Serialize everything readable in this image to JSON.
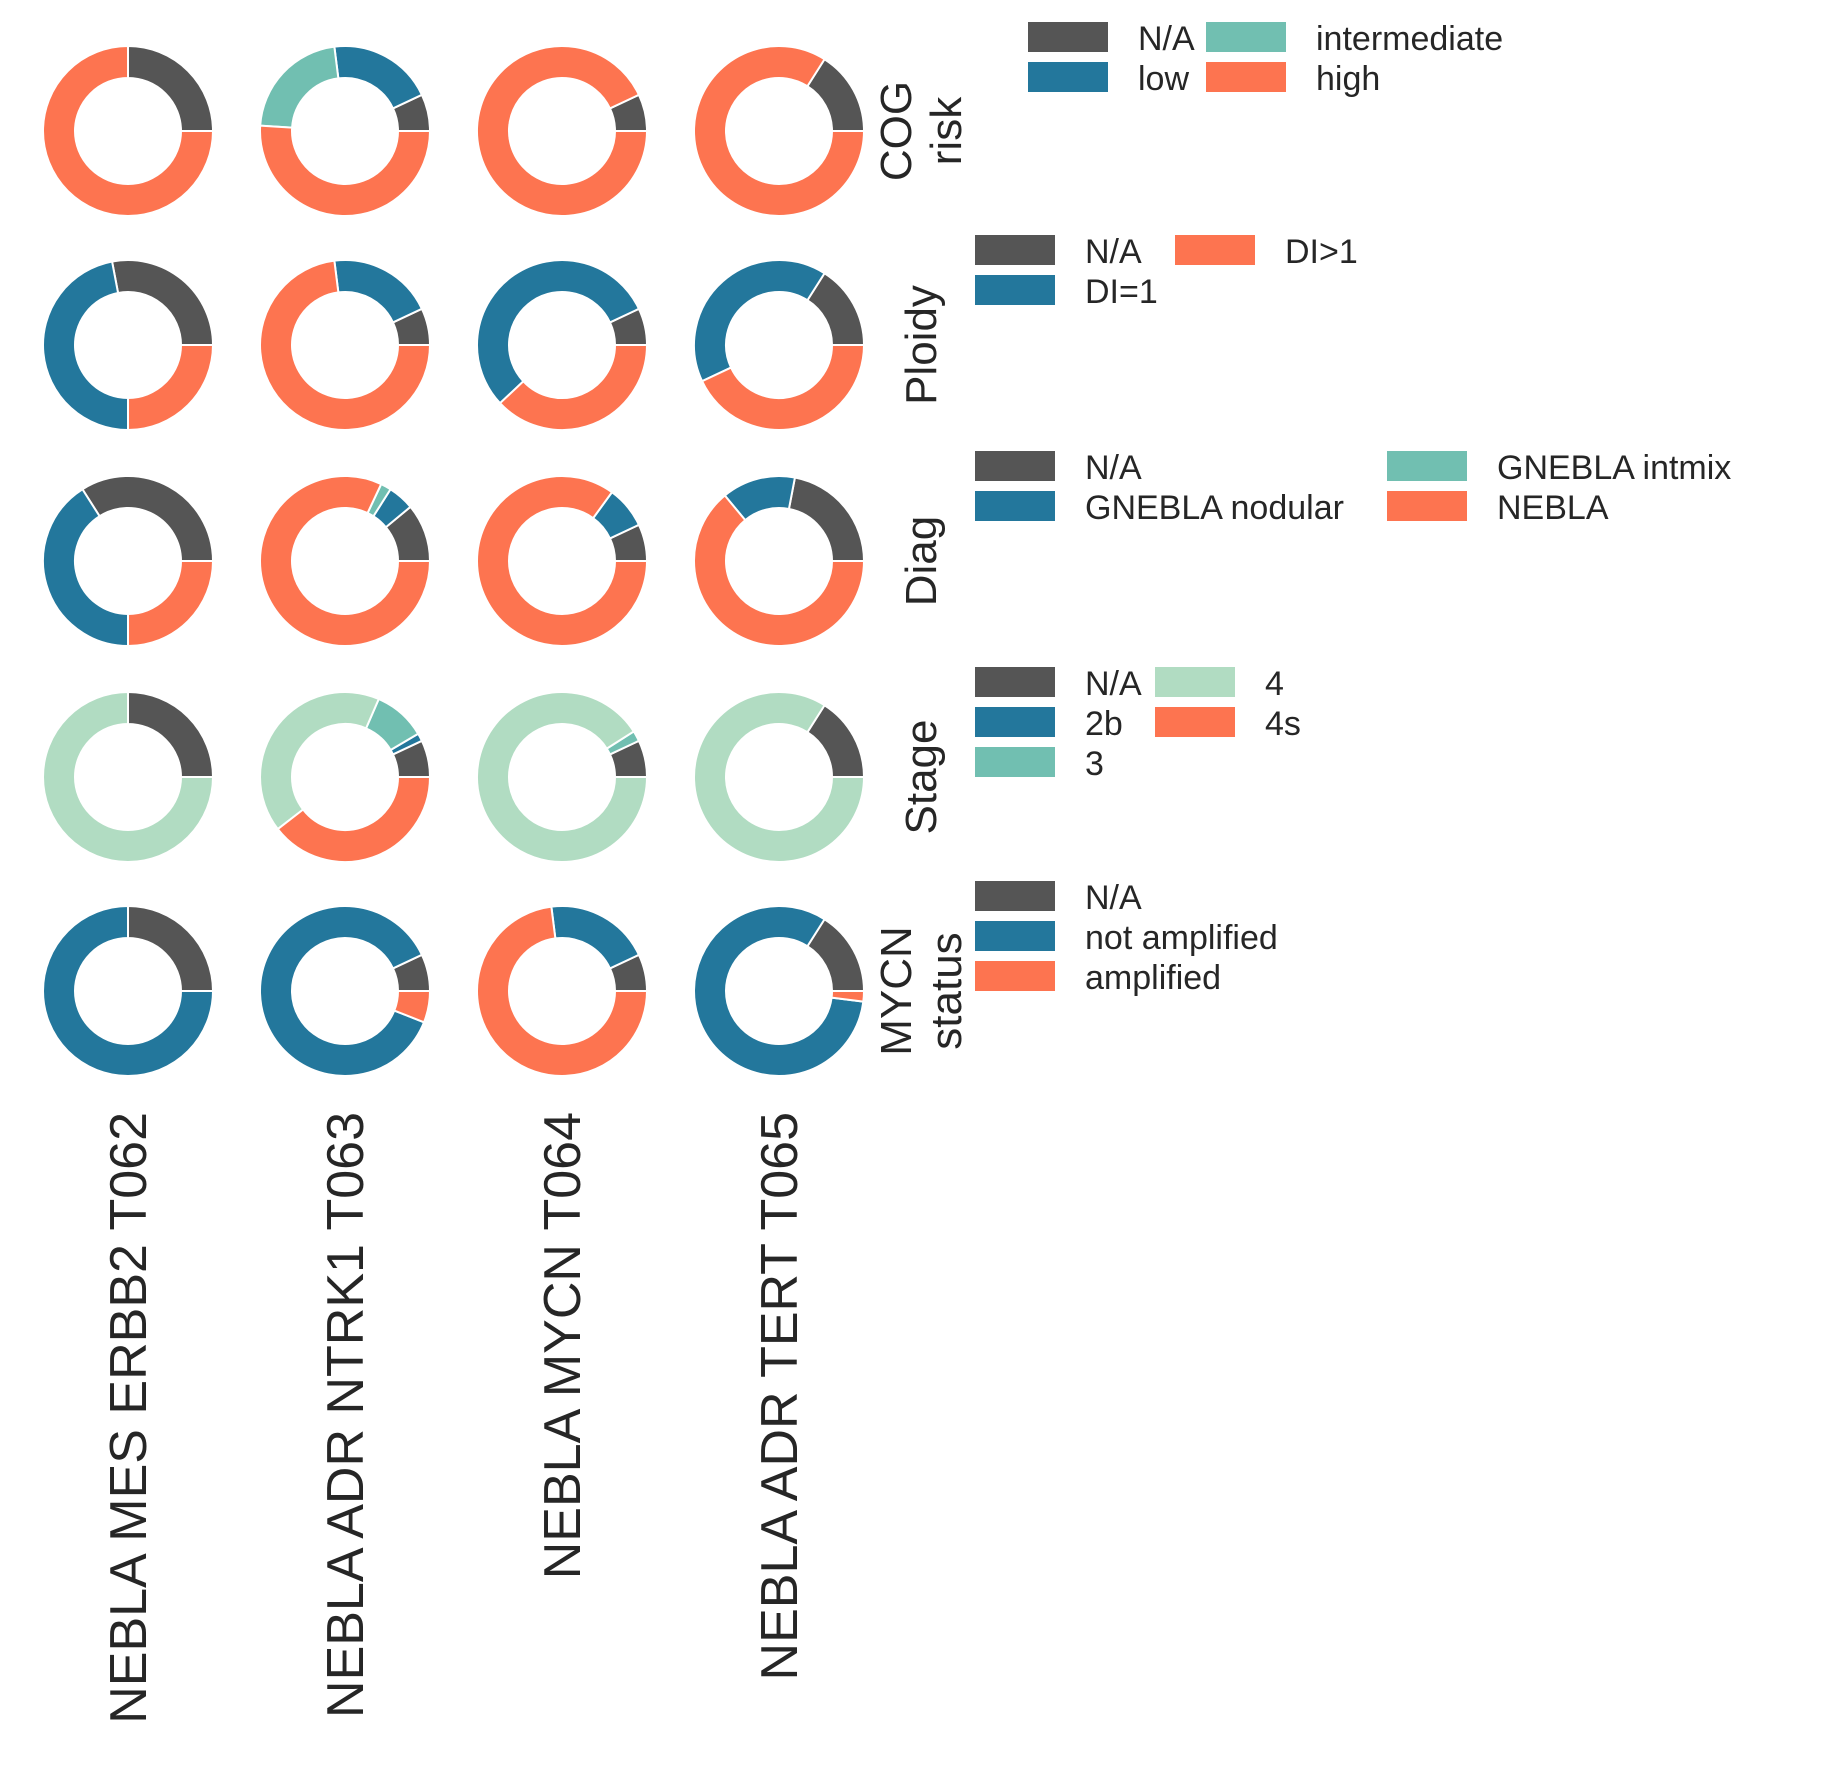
{
  "chart_data": {
    "type": "pie",
    "variant": "donut-grid",
    "columns": [
      "NEBLA MES ERBB2 T062",
      "NEBLA ADR NTRK1 T063",
      "NEBLA MYCN T064",
      "NEBLA ADR TERT T065"
    ],
    "rows": [
      {
        "label_lines": [
          "COG",
          "risk"
        ],
        "legend_cols": 2,
        "categories": [
          "N/A",
          "low",
          "intermediate",
          "high"
        ],
        "colors": [
          "#555555",
          "#23779c",
          "#71bfb1",
          "#fd7450"
        ],
        "values": [
          [
            25,
            0,
            0,
            75
          ],
          [
            7,
            20,
            22,
            51
          ],
          [
            7,
            0,
            0,
            93
          ],
          [
            16,
            0,
            0,
            84
          ]
        ]
      },
      {
        "label_lines": [
          "Ploidy"
        ],
        "legend_cols": 2,
        "categories": [
          "N/A",
          "DI=1",
          "DI>1"
        ],
        "colors": [
          "#555555",
          "#23779c",
          "#fd7450"
        ],
        "values": [
          [
            28,
            47,
            25
          ],
          [
            7,
            20,
            73
          ],
          [
            7,
            55,
            38
          ],
          [
            16,
            41,
            43
          ]
        ]
      },
      {
        "label_lines": [
          "Diag"
        ],
        "legend_cols": 2,
        "categories": [
          "N/A",
          "GNEBLA nodular",
          "GNEBLA intmix",
          "NEBLA"
        ],
        "colors": [
          "#555555",
          "#23779c",
          "#71bfb1",
          "#fd7450"
        ],
        "values": [
          [
            34,
            41,
            0,
            25
          ],
          [
            11,
            5,
            2,
            82
          ],
          [
            7,
            8,
            0,
            85
          ],
          [
            22,
            14,
            0,
            64
          ]
        ]
      },
      {
        "label_lines": [
          "Stage"
        ],
        "legend_cols": 2,
        "categories": [
          "N/A",
          "2b",
          "3",
          "4",
          "4s"
        ],
        "colors": [
          "#555555",
          "#23779c",
          "#71bfb1",
          "#b1dcc2",
          "#fd7450"
        ],
        "values": [
          [
            25,
            0,
            0,
            75,
            0
          ],
          [
            7,
            1.5,
            10,
            42,
            39.5
          ],
          [
            7,
            0,
            2,
            91,
            0
          ],
          [
            16,
            0,
            0,
            84,
            0
          ]
        ]
      },
      {
        "label_lines": [
          "MYCN",
          "status"
        ],
        "legend_cols": 1,
        "categories": [
          "N/A",
          "not amplified",
          "amplified"
        ],
        "colors": [
          "#555555",
          "#23779c",
          "#fd7450"
        ],
        "values": [
          [
            25,
            75,
            0
          ],
          [
            7,
            87,
            6
          ],
          [
            7,
            20,
            73
          ],
          [
            16,
            82,
            2
          ]
        ]
      }
    ]
  }
}
